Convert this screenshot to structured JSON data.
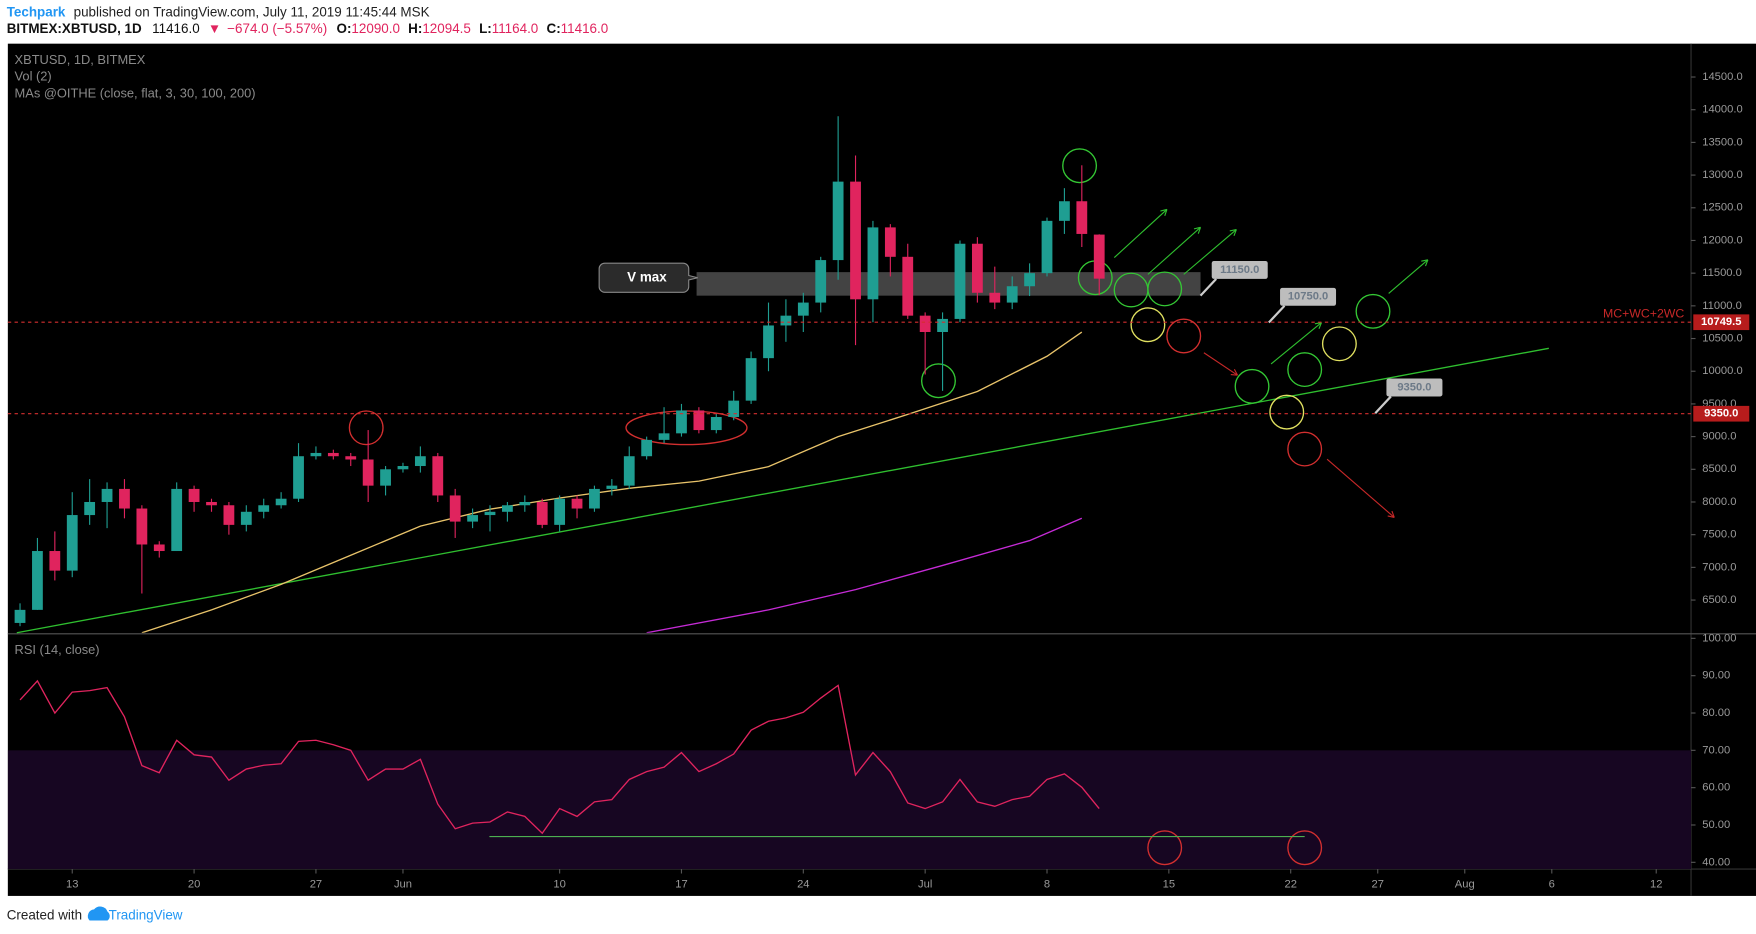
{
  "header": {
    "author": "Techpark",
    "published": "published on TradingView.com, July 11, 2019 11:45:44 MSK",
    "symbol": "BITMEX:XBTUSD, 1D",
    "last": "11416.0",
    "arrow": "▼",
    "change": "−674.0 (−5.57%)",
    "ohlc": [
      {
        "key": "O:",
        "value": "12090.0"
      },
      {
        "key": "H:",
        "value": "12094.5"
      },
      {
        "key": "L:",
        "value": "11164.0"
      },
      {
        "key": "C:",
        "value": "11416.0"
      }
    ]
  },
  "footer": {
    "created": "Created with",
    "brand": "TradingView"
  },
  "chart_data": [
    {
      "type": "candlestick",
      "legend": [
        "XBTUSD, 1D, BITMEX",
        "Vol (2)",
        "MAs @OITHE (close, flat, 3, 30, 100, 200)"
      ],
      "up_color": "#1f9e92",
      "down_color": "#e0245e",
      "x": [
        -3,
        -2,
        -1,
        0,
        1,
        2,
        3,
        4,
        5,
        6,
        7,
        8,
        9,
        10,
        11,
        12,
        13,
        14,
        15,
        16,
        17,
        18,
        19,
        20,
        21,
        22,
        23,
        24,
        25,
        26,
        27,
        28,
        29,
        30,
        31,
        32,
        33,
        34,
        35,
        36,
        37,
        38,
        39,
        40,
        41,
        42,
        43,
        44,
        45,
        46,
        47,
        48,
        49,
        50,
        51,
        52,
        53,
        54,
        55,
        56,
        57,
        58,
        59
      ],
      "open": [
        6150,
        6350,
        7250,
        6950,
        7800,
        8000,
        8200,
        7900,
        7350,
        7250,
        8200,
        8000,
        7950,
        7650,
        7850,
        7950,
        8050,
        8700,
        8750,
        8700,
        8650,
        8250,
        8500,
        8550,
        8700,
        8100,
        7700,
        7800,
        7850,
        7950,
        8000,
        7650,
        8050,
        7900,
        8200,
        8250,
        8700,
        8950,
        9050,
        9400,
        9100,
        9300,
        9550,
        10200,
        10700,
        10850,
        11050,
        11700,
        12900,
        11100,
        12200,
        11750,
        10850,
        10600,
        10800,
        11950,
        11200,
        11050,
        11300,
        11500,
        12300,
        12600,
        12090
      ],
      "high": [
        6450,
        7450,
        7550,
        8150,
        8350,
        8300,
        8350,
        7950,
        7400,
        8300,
        8250,
        8050,
        8000,
        7950,
        8050,
        8150,
        8900,
        8850,
        8800,
        8750,
        9100,
        8550,
        8600,
        8850,
        8750,
        8200,
        7900,
        7950,
        8000,
        8100,
        8050,
        8100,
        8100,
        8250,
        8350,
        8850,
        9000,
        9450,
        9500,
        9450,
        9350,
        9700,
        10300,
        11050,
        11100,
        11200,
        11750,
        13900,
        13300,
        12300,
        12250,
        11950,
        10900,
        10900,
        12000,
        12050,
        11600,
        11450,
        11650,
        12350,
        12800,
        13150,
        12094.5
      ],
      "low": [
        6100,
        6350,
        6800,
        6850,
        7650,
        7600,
        7750,
        6600,
        7150,
        7250,
        7850,
        7850,
        7500,
        7550,
        7750,
        7900,
        8000,
        8650,
        8650,
        8550,
        8000,
        8100,
        8450,
        8450,
        8000,
        7450,
        7600,
        7550,
        7700,
        7850,
        7600,
        7550,
        7750,
        7850,
        8100,
        8200,
        8650,
        8900,
        9000,
        9050,
        9050,
        9250,
        9500,
        10000,
        10450,
        10600,
        10900,
        11400,
        10400,
        10750,
        11450,
        10800,
        9950,
        9700,
        10750,
        11050,
        10950,
        10950,
        11150,
        11450,
        12100,
        11900,
        11164
      ],
      "close": [
        6350,
        7250,
        6950,
        7800,
        8000,
        8200,
        7900,
        7350,
        7250,
        8200,
        8000,
        7950,
        7650,
        7850,
        7950,
        8050,
        8700,
        8750,
        8700,
        8650,
        8250,
        8500,
        8550,
        8700,
        8100,
        7700,
        7800,
        7850,
        7950,
        8000,
        7650,
        8050,
        7900,
        8200,
        8250,
        8700,
        8950,
        9050,
        9400,
        9100,
        9300,
        9550,
        10200,
        10700,
        10850,
        11050,
        11700,
        12900,
        11100,
        12200,
        11750,
        10850,
        10600,
        10800,
        11950,
        11200,
        11050,
        11300,
        11500,
        12300,
        12600,
        12100,
        11416
      ],
      "series": [
        {
          "color": "#e8c36a",
          "x": [
            4,
            8,
            12,
            16,
            20,
            24,
            28,
            32,
            36,
            40,
            44,
            48,
            52,
            56,
            58
          ],
          "values": [
            6000,
            6350,
            6740,
            7185,
            7630,
            7890,
            8060,
            8210,
            8320,
            8540,
            9000,
            9340,
            9690,
            10230,
            10600
          ]
        },
        {
          "color": "#c52bd6",
          "x": [
            33,
            40,
            45,
            50,
            55,
            58
          ],
          "values": [
            6000,
            6350,
            6660,
            7030,
            7410,
            7750
          ]
        }
      ],
      "hlines": [
        {
          "value": 10749.5,
          "label": "10749.5",
          "note": "MC+WC+2WC"
        },
        {
          "value": 9350,
          "label": "9350.0"
        }
      ],
      "annotations": [
        "V max",
        "11150.0",
        "10750.0",
        "9350.0"
      ],
      "xlim": [
        -3.7,
        93
      ],
      "ylim": [
        6000,
        15010
      ],
      "xticks": [
        {
          "value": 0,
          "label": "13"
        },
        {
          "value": 7,
          "label": "20"
        },
        {
          "value": 14,
          "label": "27"
        },
        {
          "value": 19,
          "label": "Jun"
        },
        {
          "value": 28,
          "label": "10"
        },
        {
          "value": 35,
          "label": "17"
        },
        {
          "value": 42,
          "label": "24"
        },
        {
          "value": 49,
          "label": "Jul"
        },
        {
          "value": 56,
          "label": "8"
        },
        {
          "value": 63,
          "label": "15"
        },
        {
          "value": 70,
          "label": "22"
        },
        {
          "value": 75,
          "label": "27"
        },
        {
          "value": 80,
          "label": "Aug"
        },
        {
          "value": 85,
          "label": "6"
        },
        {
          "value": 91,
          "label": "12"
        }
      ],
      "yticks": [
        {
          "value": 6500,
          "label": "6500.0"
        },
        {
          "value": 7000,
          "label": "7000.0"
        },
        {
          "value": 7500,
          "label": "7500.0"
        },
        {
          "value": 8000,
          "label": "8000.0"
        },
        {
          "value": 8500,
          "label": "8500.0"
        },
        {
          "value": 9000,
          "label": "9000.0"
        },
        {
          "value": 9500,
          "label": "9500.0"
        },
        {
          "value": 10000,
          "label": "10000.0"
        },
        {
          "value": 10500,
          "label": "10500.0"
        },
        {
          "value": 11000,
          "label": "11000.0"
        },
        {
          "value": 11500,
          "label": "11500.0"
        },
        {
          "value": 12000,
          "label": "12000.0"
        },
        {
          "value": 12500,
          "label": "12500.0"
        },
        {
          "value": 13000,
          "label": "13000.0"
        },
        {
          "value": 13500,
          "label": "13500.0"
        },
        {
          "value": 14000,
          "label": "14000.0"
        },
        {
          "value": 14500,
          "label": "14500.0"
        }
      ]
    },
    {
      "type": "line",
      "legend": [
        "RSI (14, close)"
      ],
      "color": "#e0245e",
      "band": [
        30,
        70
      ],
      "band_color": "#170622",
      "x": [
        -3,
        -2,
        -1,
        0,
        1,
        2,
        3,
        4,
        5,
        6,
        7,
        8,
        9,
        10,
        11,
        12,
        13,
        14,
        15,
        16,
        17,
        18,
        19,
        20,
        21,
        22,
        23,
        24,
        25,
        26,
        27,
        28,
        29,
        30,
        31,
        32,
        33,
        34,
        35,
        36,
        37,
        38,
        39,
        40,
        41,
        42,
        43,
        44,
        45,
        46,
        47,
        48,
        49,
        50,
        51,
        52,
        53,
        54,
        55,
        56,
        57,
        58,
        59
      ],
      "values": [
        83.5,
        88.6,
        80,
        85.6,
        86,
        86.8,
        79,
        65.9,
        64,
        72.7,
        68.8,
        68.2,
        62,
        65,
        66,
        66.4,
        72.4,
        72.7,
        71.5,
        70,
        62,
        65,
        65,
        67.6,
        55.6,
        49,
        50.5,
        50.8,
        53.5,
        52.3,
        47.8,
        54.4,
        52.3,
        56.2,
        56.8,
        62.2,
        64.3,
        65.5,
        69.4,
        64.3,
        66.4,
        69,
        75.4,
        77.8,
        78.7,
        80.2,
        84,
        87.4,
        63.4,
        69.4,
        64.3,
        55.9,
        54.4,
        56.2,
        62.2,
        56.2,
        55,
        56.8,
        57.7,
        62.2,
        63.7,
        60.1,
        54.4
      ],
      "ylim": [
        38.2,
        100.9
      ],
      "yticks": [
        {
          "value": 40,
          "label": "40.00"
        },
        {
          "value": 50,
          "label": "50.00"
        },
        {
          "value": 60,
          "label": "60.00"
        },
        {
          "value": 70,
          "label": "70.00"
        },
        {
          "value": 80,
          "label": "80.00"
        },
        {
          "value": 90,
          "label": "90.00"
        },
        {
          "value": 100,
          "label": "100.00"
        }
      ]
    }
  ]
}
